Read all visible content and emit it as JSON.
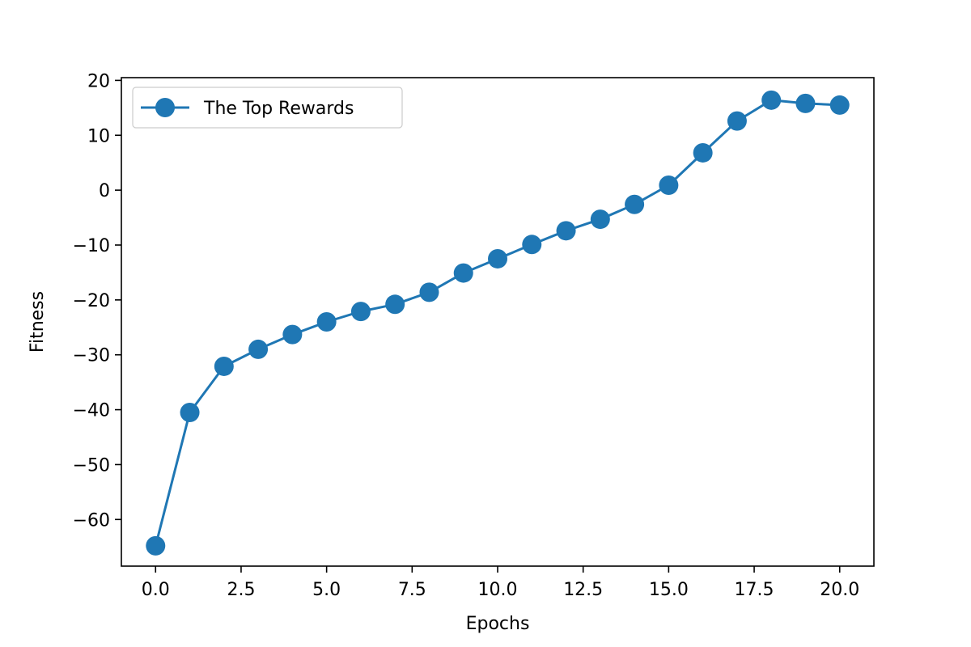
{
  "chart_data": {
    "type": "line",
    "xlabel": "Epochs",
    "ylabel": "Fitness",
    "xlim": [
      -1,
      21
    ],
    "ylim": [
      -68.5,
      20.5
    ],
    "xticks": [
      0.0,
      2.5,
      5.0,
      7.5,
      10.0,
      12.5,
      15.0,
      17.5,
      20.0
    ],
    "xtick_labels": [
      "0.0",
      "2.5",
      "5.0",
      "7.5",
      "10.0",
      "12.5",
      "15.0",
      "17.5",
      "20.0"
    ],
    "yticks": [
      20,
      10,
      0,
      -10,
      -20,
      -30,
      -40,
      -50,
      -60
    ],
    "ytick_labels": [
      "20",
      "10",
      "0",
      "−10",
      "−20",
      "−30",
      "−40",
      "−50",
      "−60"
    ],
    "legend_position": "top-left",
    "grid": false,
    "series": [
      {
        "name": "The Top Rewards",
        "color": "#1f77b4",
        "marker": "circle",
        "x": [
          0,
          1,
          2,
          3,
          4,
          5,
          6,
          7,
          8,
          9,
          10,
          11,
          12,
          13,
          14,
          15,
          16,
          17,
          18,
          19,
          20
        ],
        "y": [
          -64.8,
          -40.5,
          -32.1,
          -29.0,
          -26.3,
          -24.0,
          -22.1,
          -20.8,
          -18.6,
          -15.1,
          -12.5,
          -9.9,
          -7.4,
          -5.3,
          -2.6,
          0.9,
          6.8,
          12.6,
          16.4,
          15.8,
          15.5
        ]
      }
    ]
  }
}
